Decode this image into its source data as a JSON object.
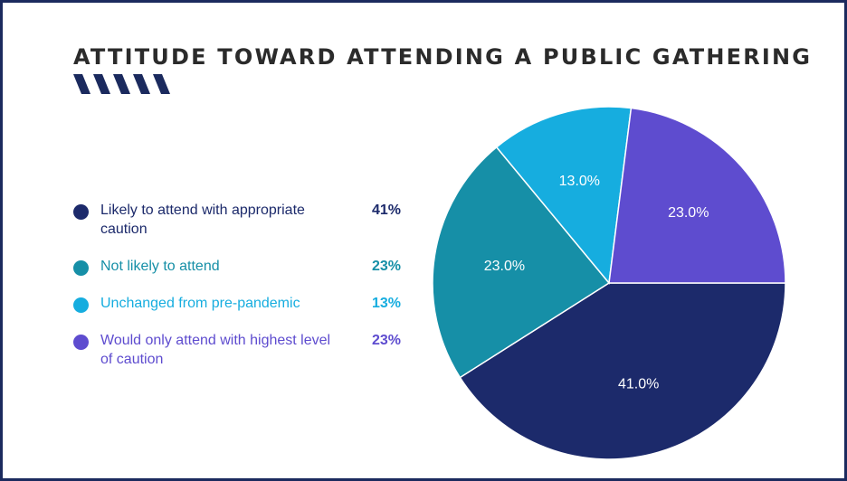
{
  "title": "ATTITUDE TOWARD ATTENDING A PUBLIC GATHERING",
  "colors": {
    "frame": "#1b2a5e",
    "stripes": "#1b2a5e",
    "title": "#2b2b2b"
  },
  "legend": [
    {
      "label": "Likely to attend with appropriate caution",
      "value": "41%",
      "color": "#1c2a6b"
    },
    {
      "label": "Not likely to attend",
      "value": "23%",
      "color": "#168fa7"
    },
    {
      "label": "Unchanged from pre-pandemic",
      "value": "13%",
      "color": "#16addf"
    },
    {
      "label": "Would only attend with highest level of caution",
      "value": "23%",
      "color": "#5e4ccf"
    }
  ],
  "chart_data": {
    "type": "pie",
    "categories": [
      "Likely to attend with appropriate caution",
      "Not likely to attend",
      "Unchanged from pre-pandemic",
      "Would only attend with highest level of caution"
    ],
    "values": [
      41.0,
      23.0,
      13.0,
      23.0
    ],
    "data_labels": [
      "41.0%",
      "23.0%",
      "13.0%",
      "23.0%"
    ],
    "colors": [
      "#1c2a6b",
      "#168fa7",
      "#16addf",
      "#5e4ccf"
    ],
    "title": "ATTITUDE TOWARD ATTENDING A PUBLIC GATHERING",
    "start": "3 o'clock",
    "direction": "clockwise",
    "legend_position": "left"
  }
}
